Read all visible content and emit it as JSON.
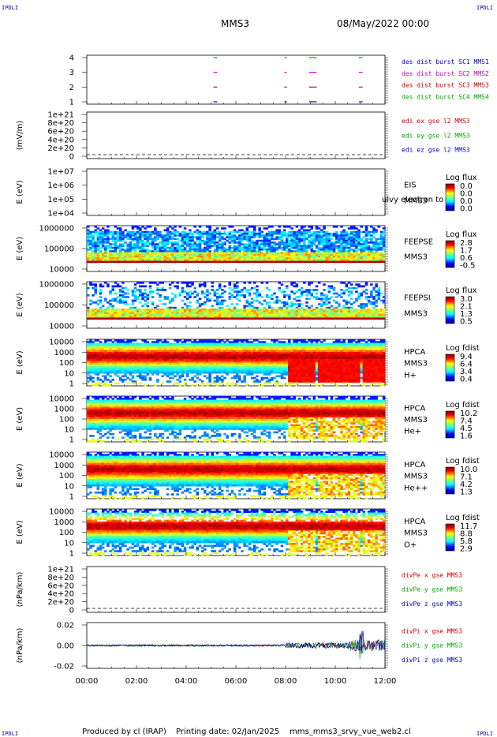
{
  "header": {
    "corner_left": "IPDLI",
    "corner_right": "IPDLI",
    "spacecraft": "MMS3",
    "datetime": "08/May/2022 00:00"
  },
  "footer": {
    "corner_left": "IPDLI",
    "corner_right": "IPDLI",
    "produced_by": "Produced by cl (IRAP)",
    "printing_date": "Printing date: 02/Jan/2025",
    "product": "mms_mms3_srvy_vue_web2.cl"
  },
  "chart_data": {
    "type": "multi-panel",
    "xaxis": {
      "range_hours": [
        0,
        12
      ],
      "tick_labels": [
        "00:00",
        "02:00",
        "04:00",
        "06:00",
        "08:00",
        "10:00",
        "12:00"
      ]
    },
    "panels": [
      {
        "id": "burst",
        "type": "event",
        "yticks": [
          "4",
          "3",
          "2",
          "1"
        ],
        "legend": [
          {
            "label": "des dist burst SC1 MMS1",
            "color": "#0000cc"
          },
          {
            "label": "des dist burst SC2 MMS2",
            "color": "#cc00cc"
          },
          {
            "label": "des dist burst SC3 MMS3",
            "color": "#cc0000"
          },
          {
            "label": "des dist burst SC4 MMS4",
            "color": "#00aa00"
          }
        ],
        "segments_hours": [
          [
            5.1,
            5.25
          ],
          [
            7.95,
            8.05
          ],
          [
            8.95,
            9.25
          ],
          [
            10.95,
            11.1
          ]
        ]
      },
      {
        "id": "edi",
        "type": "line",
        "ylabel": "(mV/m)",
        "yticks": [
          "1e+21",
          "8e+20",
          "6e+20",
          "4e+20",
          "2e+20",
          "0"
        ],
        "legend": [
          {
            "label": "edi ex gse l2 MMS3",
            "color": "#cc0000"
          },
          {
            "label": "edi ey gse l2 MMS3",
            "color": "#00aa00"
          },
          {
            "label": "edi ez gse l2 MMS3",
            "color": "#0000cc"
          }
        ]
      },
      {
        "id": "eis",
        "type": "spectrogram",
        "ylabel": "E (eV)",
        "yticks": [
          "1e+07",
          "1e+06",
          "1e+05",
          "1e+04"
        ],
        "instrument": [
          "EIS",
          "MMS3"
        ],
        "overlay_text": "ulvy electron to",
        "cbar_title": "Log flux",
        "cbar_ticks": [
          "0.0",
          "0.0",
          "0.0",
          "0.0"
        ]
      },
      {
        "id": "feepse",
        "type": "spectrogram",
        "ylabel": "E (eV)",
        "yticks": [
          "1000000",
          "100000",
          "10000"
        ],
        "instrument": [
          "FEEPSE",
          "MMS3"
        ],
        "cbar_title": "Log flux",
        "cbar_ticks": [
          "2.8",
          "1.7",
          "0.6",
          "-0.5"
        ]
      },
      {
        "id": "feepsi",
        "type": "spectrogram",
        "ylabel": "E (eV)",
        "yticks": [
          "1000000",
          "100000",
          "10000"
        ],
        "instrument": [
          "FEEPSI",
          "MMS3"
        ],
        "cbar_title": "Log flux",
        "cbar_ticks": [
          "3.0",
          "2.1",
          "1.3",
          "0.5"
        ]
      },
      {
        "id": "hpca_h",
        "type": "spectrogram",
        "ylabel": "E (eV)",
        "yticks": [
          "10000",
          "1000",
          "100",
          "10",
          "1"
        ],
        "instrument": [
          "HPCA",
          "MMS3",
          "H+"
        ],
        "cbar_title": "Log fdist",
        "cbar_ticks": [
          "9.4",
          "6.4",
          "3.4",
          "0.4"
        ]
      },
      {
        "id": "hpca_he",
        "type": "spectrogram",
        "ylabel": "E (eV)",
        "yticks": [
          "10000",
          "1000",
          "100",
          "10",
          "1"
        ],
        "instrument": [
          "HPCA",
          "MMS3",
          "He+"
        ],
        "cbar_title": "Log fdist",
        "cbar_ticks": [
          "10.2",
          "7.4",
          "4.5",
          "1.6"
        ]
      },
      {
        "id": "hpca_hepp",
        "type": "spectrogram",
        "ylabel": "E (eV)",
        "yticks": [
          "10000",
          "1000",
          "100",
          "10",
          "1"
        ],
        "instrument": [
          "HPCA",
          "MMS3",
          "He++"
        ],
        "cbar_title": "Log fdist",
        "cbar_ticks": [
          "10.0",
          "7.1",
          "4.2",
          "1.3"
        ]
      },
      {
        "id": "hpca_o",
        "type": "spectrogram",
        "ylabel": "E (eV)",
        "yticks": [
          "10000",
          "1000",
          "100",
          "10",
          "1"
        ],
        "instrument": [
          "HPCA",
          "MMS3",
          "O+"
        ],
        "cbar_title": "Log fdist",
        "cbar_ticks": [
          "11.7",
          "8.8",
          "5.8",
          "2.9"
        ]
      },
      {
        "id": "divpe",
        "type": "line",
        "ylabel": "(nPa/km)",
        "yticks": [
          "1e+21",
          "8e+20",
          "6e+20",
          "4e+20",
          "2e+20",
          "0"
        ],
        "legend": [
          {
            "label": "divPe x gse MMS3",
            "color": "#cc0000"
          },
          {
            "label": "divPe y gse MMS3",
            "color": "#00aa00"
          },
          {
            "label": "divPe z gse MMS3",
            "color": "#0000cc"
          }
        ]
      },
      {
        "id": "divpi",
        "type": "line",
        "ylabel": "(nPa/km)",
        "yticks": [
          "0.02",
          "0.00",
          "-0.02"
        ],
        "ylim": [
          -0.03,
          0.03
        ],
        "legend": [
          {
            "label": "divPi x gse MMS3",
            "color": "#cc0000"
          },
          {
            "label": "divPi y gse MMS3",
            "color": "#00aa00"
          },
          {
            "label": "divPi z gse MMS3",
            "color": "#0000cc"
          }
        ]
      }
    ]
  }
}
